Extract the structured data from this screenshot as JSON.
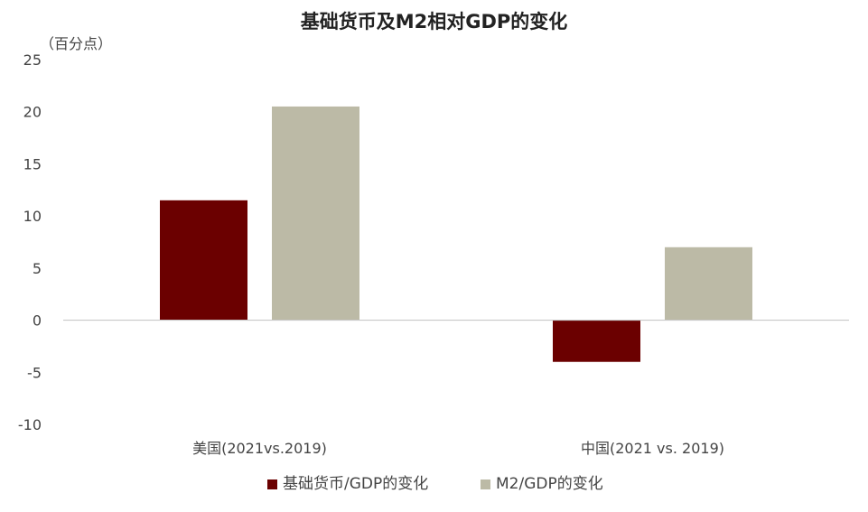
{
  "chart_data": {
    "type": "bar",
    "title": "基础货币及M2相对GDP的变化",
    "y_unit": "（百分点）",
    "categories": [
      "美国(2021vs.2019)",
      "中国(2021 vs. 2019)"
    ],
    "series": [
      {
        "name": "基础货币/GDP的变化",
        "values": [
          11.5,
          -4.0
        ],
        "color": "#6b0000"
      },
      {
        "name": "M2/GDP的变化",
        "values": [
          20.5,
          7.0
        ],
        "color": "#bcbaa6"
      }
    ],
    "ylim": [
      -10,
      25
    ],
    "yticks": [
      25,
      20,
      15,
      10,
      5,
      0,
      -5,
      -10
    ],
    "grid": false,
    "legend_position": "bottom"
  }
}
